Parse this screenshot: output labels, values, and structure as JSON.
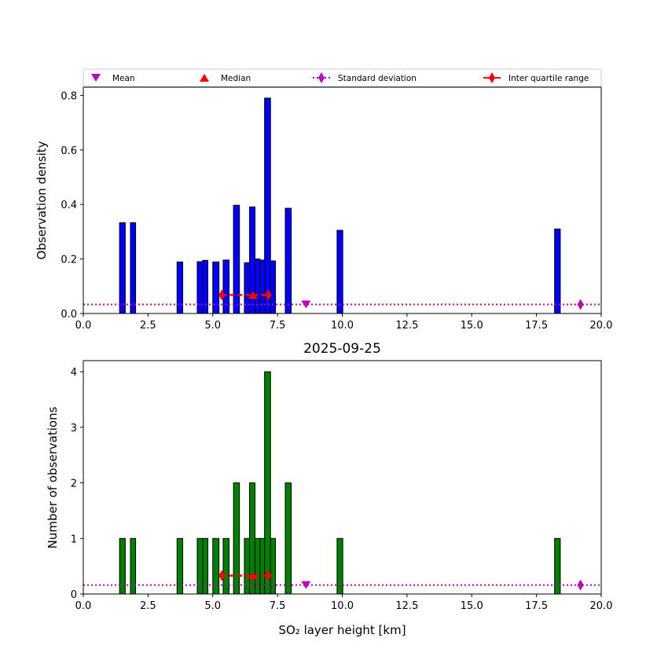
{
  "legend": {
    "position": "top",
    "entries": [
      {
        "label": "Mean",
        "marker": "triangle-down",
        "color": "#bf00bf"
      },
      {
        "label": "Median",
        "marker": "triangle-up",
        "color": "#ff0000"
      },
      {
        "label": "Standard deviation",
        "marker": "diamond-dotted-line",
        "color": "#bf00bf"
      },
      {
        "label": "Inter quartile range",
        "marker": "diamond-line",
        "color": "#ff0000"
      }
    ]
  },
  "chart_data": [
    {
      "type": "bar",
      "title": "",
      "xlabel": "",
      "ylabel": "Observation density",
      "xlim": [
        0,
        20
      ],
      "ylim": [
        0,
        0.83
      ],
      "xticks": [
        "0.0",
        "2.5",
        "5.0",
        "7.5",
        "10.0",
        "12.5",
        "15.0",
        "17.5",
        "20.0"
      ],
      "xtick_values": [
        0,
        2.5,
        5,
        7.5,
        10,
        12.5,
        15,
        17.5,
        20
      ],
      "yticks": [
        "0.0",
        "0.2",
        "0.4",
        "0.6",
        "0.8"
      ],
      "ytick_values": [
        0,
        0.2,
        0.4,
        0.6,
        0.8
      ],
      "bar_color": "#0000ff",
      "bins": [
        [
          1.4,
          1.62
        ],
        [
          1.82,
          2.02
        ],
        [
          3.62,
          3.84
        ],
        [
          4.4,
          4.61
        ],
        [
          4.61,
          4.81
        ],
        [
          5.0,
          5.24
        ],
        [
          5.4,
          5.63
        ],
        [
          5.8,
          6.03
        ],
        [
          6.22,
          6.42
        ],
        [
          6.42,
          6.63
        ],
        [
          6.63,
          6.82
        ],
        [
          6.82,
          7.0
        ],
        [
          7.0,
          7.23
        ],
        [
          7.23,
          7.42
        ],
        [
          7.8,
          8.03
        ],
        [
          9.8,
          10.02
        ],
        [
          18.2,
          18.42
        ]
      ],
      "values": [
        0.333,
        0.333,
        0.189,
        0.19,
        0.195,
        0.189,
        0.196,
        0.397,
        0.186,
        0.391,
        0.2,
        0.196,
        0.79,
        0.193,
        0.386,
        0.305,
        0.31
      ],
      "stats": {
        "mean": 8.6,
        "median": 6.55,
        "q1": 5.35,
        "q3": 7.15,
        "std_marker_x": 19.2,
        "std_line_y": 0.033,
        "iqr_y": 0.068
      }
    },
    {
      "type": "bar",
      "title": "2025-09-25",
      "xlabel": "SO₂ layer height [km]",
      "ylabel": "Number of observations",
      "xlim": [
        0,
        20
      ],
      "ylim": [
        0,
        4.2
      ],
      "xticks": [
        "0.0",
        "2.5",
        "5.0",
        "7.5",
        "10.0",
        "12.5",
        "15.0",
        "17.5",
        "20.0"
      ],
      "xtick_values": [
        0,
        2.5,
        5,
        7.5,
        10,
        12.5,
        15,
        17.5,
        20
      ],
      "yticks": [
        "0",
        "1",
        "2",
        "3",
        "4"
      ],
      "ytick_values": [
        0,
        1,
        2,
        3,
        4
      ],
      "bar_color": "#008000",
      "bins": [
        [
          1.4,
          1.62
        ],
        [
          1.82,
          2.02
        ],
        [
          3.62,
          3.84
        ],
        [
          4.4,
          4.61
        ],
        [
          4.61,
          4.81
        ],
        [
          5.0,
          5.24
        ],
        [
          5.4,
          5.63
        ],
        [
          5.8,
          6.03
        ],
        [
          6.22,
          6.42
        ],
        [
          6.42,
          6.63
        ],
        [
          6.63,
          6.82
        ],
        [
          6.82,
          7.0
        ],
        [
          7.0,
          7.23
        ],
        [
          7.23,
          7.42
        ],
        [
          7.8,
          8.03
        ],
        [
          9.8,
          10.02
        ],
        [
          18.2,
          18.42
        ]
      ],
      "values": [
        1,
        1,
        1,
        1,
        1,
        1,
        1,
        2,
        1,
        2,
        1,
        1,
        4,
        1,
        2,
        1,
        1
      ],
      "stats": {
        "mean": 8.6,
        "median": 6.55,
        "q1": 5.35,
        "q3": 7.15,
        "std_marker_x": 19.2,
        "std_line_y": 0.16,
        "iqr_y": 0.33
      }
    }
  ]
}
